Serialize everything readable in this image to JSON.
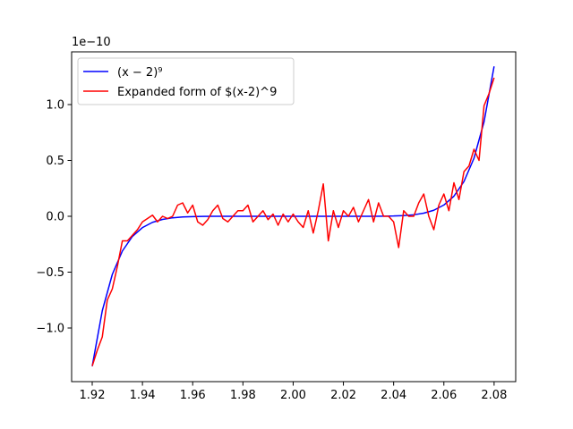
{
  "chart_data": {
    "type": "line",
    "y_offset_label": "1e−10",
    "xlim": [
      1.9118,
      2.0886
    ],
    "ylim": [
      -1.48,
      1.472
    ],
    "xticks": [
      1.92,
      1.94,
      1.96,
      1.98,
      {
        "value": 2,
        "label": "2.00"
      },
      2.02,
      2.04,
      2.06,
      2.08
    ],
    "yticks": [
      {
        "value": -1,
        "label": "−1.0"
      },
      {
        "value": -0.5,
        "label": "−0.5"
      },
      {
        "value": 0,
        "label": "0.0"
      },
      {
        "value": 0.5,
        "label": "0.5"
      },
      {
        "value": 1,
        "label": "1.0"
      }
    ],
    "legend": "upper left",
    "series": [
      {
        "name": "(x − 2)⁹",
        "color": "#0000ff",
        "x": [
          1.92,
          1.924,
          1.928,
          1.932,
          1.936,
          1.94,
          1.944,
          1.948,
          1.952,
          1.956,
          1.96,
          1.964,
          1.968,
          1.972,
          1.976,
          1.98,
          1.984,
          1.988,
          1.992,
          1.996,
          2,
          2.004,
          2.008,
          2.012,
          2.016,
          2.02,
          2.024,
          2.028,
          2.032,
          2.036,
          2.04,
          2.044,
          2.048,
          2.052,
          2.056,
          2.06,
          2.064,
          2.068,
          2.072,
          2.076,
          2.08
        ],
        "values": [
          -1.342,
          -0.846,
          -0.52,
          -0.311,
          -0.18,
          -0.101,
          -0.054,
          -0.028,
          -0.0135,
          -0.0062,
          -0.0026,
          -0.001,
          -0.0004,
          -0.0001,
          0,
          0,
          0,
          0,
          0,
          0,
          0,
          0,
          0,
          0,
          0,
          0,
          0,
          0.0001,
          0.0004,
          0.001,
          0.0026,
          0.0062,
          0.0135,
          0.028,
          0.054,
          0.101,
          0.18,
          0.311,
          0.52,
          0.846,
          1.342
        ]
      },
      {
        "name": "Expanded form of $(x-2)^9",
        "color": "#ff0000",
        "x": [
          1.92,
          1.922,
          1.924,
          1.926,
          1.928,
          1.93,
          1.932,
          1.934,
          1.936,
          1.938,
          1.94,
          1.942,
          1.944,
          1.946,
          1.948,
          1.95,
          1.952,
          1.954,
          1.956,
          1.958,
          1.96,
          1.962,
          1.964,
          1.966,
          1.968,
          1.97,
          1.972,
          1.974,
          1.976,
          1.978,
          1.98,
          1.982,
          1.984,
          1.986,
          1.988,
          1.99,
          1.992,
          1.994,
          1.996,
          1.998,
          2,
          2.002,
          2.004,
          2.006,
          2.008,
          2.01,
          2.012,
          2.014,
          2.016,
          2.018,
          2.02,
          2.022,
          2.024,
          2.026,
          2.028,
          2.03,
          2.032,
          2.034,
          2.036,
          2.038,
          2.04,
          2.042,
          2.044,
          2.046,
          2.048,
          2.05,
          2.052,
          2.054,
          2.056,
          2.058,
          2.06,
          2.062,
          2.064,
          2.066,
          2.068,
          2.07,
          2.072,
          2.074,
          2.076,
          2.078,
          2.08
        ],
        "values": [
          -1.34,
          -1.2,
          -1.08,
          -0.75,
          -0.65,
          -0.45,
          -0.22,
          -0.22,
          -0.17,
          -0.12,
          -0.05,
          -0.02,
          0.01,
          -0.05,
          0,
          -0.02,
          0,
          0.1,
          0.12,
          0.03,
          0.1,
          -0.05,
          -0.08,
          -0.03,
          0.05,
          0.1,
          -0.02,
          -0.05,
          0,
          0.05,
          0.05,
          0.1,
          -0.05,
          0,
          0.05,
          -0.03,
          0.02,
          -0.08,
          0.02,
          -0.05,
          0.02,
          -0.05,
          -0.1,
          0.05,
          -0.15,
          0.05,
          0.29,
          -0.22,
          0.05,
          -0.1,
          0.05,
          0,
          0.08,
          -0.05,
          0.05,
          0.15,
          -0.05,
          0.12,
          0,
          0,
          -0.05,
          -0.28,
          0.05,
          0,
          0,
          0.12,
          0.2,
          0,
          -0.12,
          0.1,
          0.2,
          0.05,
          0.3,
          0.15,
          0.4,
          0.45,
          0.6,
          0.5,
          0.99,
          1.1,
          1.24
        ]
      }
    ]
  }
}
